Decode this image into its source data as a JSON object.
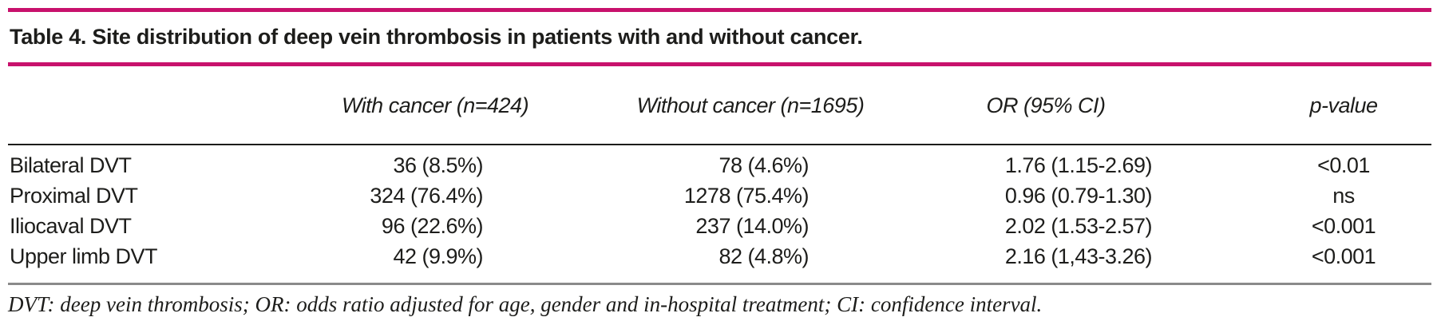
{
  "title": "Table 4. Site distribution of deep vein thrombosis in patients with and without cancer.",
  "colors": {
    "accent_rule": "#c8116c",
    "header_rule": "#1d1d1b",
    "footnote_rule": "#8a8a8a",
    "text": "#1d1d1b"
  },
  "table": {
    "columns": [
      "",
      "With cancer (n=424)",
      "Without cancer (n=1695)",
      "OR (95% CI)",
      "p-value"
    ],
    "rows": [
      {
        "site": "Bilateral DVT",
        "with_cancer": "36 (8.5%)",
        "without_cancer": "78 (4.6%)",
        "or_ci": "1.76 (1.15-2.69)",
        "p_value": "<0.01"
      },
      {
        "site": "Proximal DVT",
        "with_cancer": "324 (76.4%)",
        "without_cancer": "1278 (75.4%)",
        "or_ci": "0.96 (0.79-1.30)",
        "p_value": "ns"
      },
      {
        "site": "Iliocaval DVT",
        "with_cancer": "96 (22.6%)",
        "without_cancer": "237 (14.0%)",
        "or_ci": "2.02 (1.53-2.57)",
        "p_value": "<0.001"
      },
      {
        "site": "Upper limb DVT",
        "with_cancer": "42 (9.9%)",
        "without_cancer": "82 (4.8%)",
        "or_ci": "2.16 (1,43-3.26)",
        "p_value": "<0.001"
      }
    ]
  },
  "footnote": "DVT: deep vein thrombosis; OR: odds ratio adjusted for age, gender and in-hospital treatment; CI: confidence interval."
}
